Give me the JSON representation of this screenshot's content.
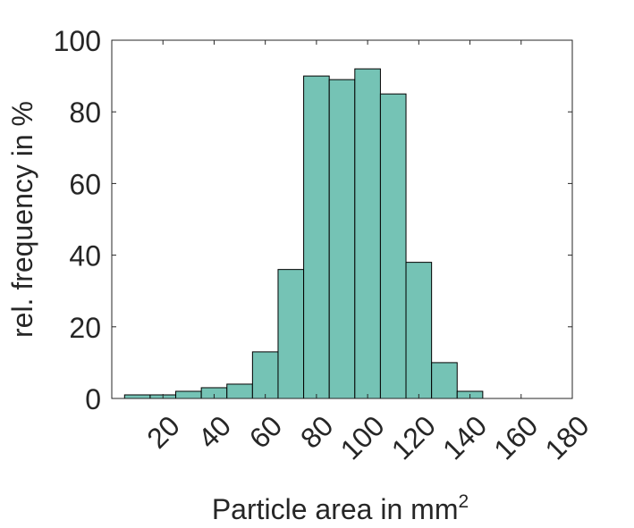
{
  "chart_data": {
    "type": "bar",
    "histogram": true,
    "bin_edges": [
      5,
      15,
      25,
      35,
      45,
      55,
      65,
      75,
      85,
      95,
      105,
      115,
      125,
      135,
      145,
      155
    ],
    "values": [
      1,
      1,
      2,
      3,
      4,
      13,
      36,
      90,
      89,
      92,
      85,
      38,
      10,
      2,
      0
    ],
    "xlim": [
      0,
      180
    ],
    "ylim": [
      0,
      100
    ],
    "xticks": [
      20,
      40,
      60,
      80,
      100,
      120,
      140,
      160,
      180
    ],
    "xtick_labels": [
      "20",
      "40",
      "60",
      "80",
      "100",
      "120",
      "140",
      "160",
      "180"
    ],
    "yticks": [
      0,
      20,
      40,
      60,
      80,
      100
    ],
    "ytick_labels": [
      "0",
      "20",
      "40",
      "60",
      "80",
      "100"
    ],
    "xlabel": "Particle area in mm",
    "xlabel_superscript": "2",
    "ylabel": "rel. frequency in %",
    "grid": false,
    "legend": "none",
    "bar_color": "#75c3b5",
    "edge_color": "#000000"
  }
}
